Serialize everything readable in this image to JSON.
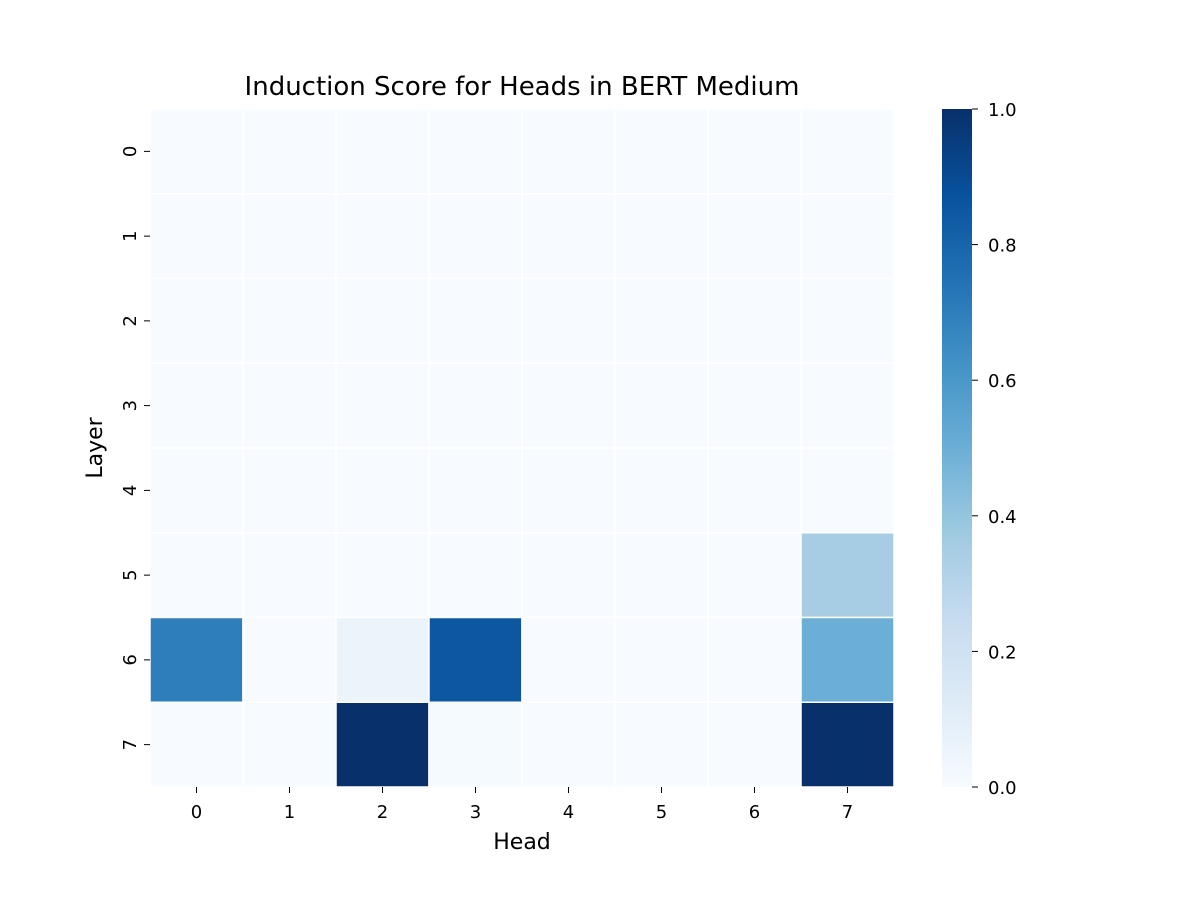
{
  "chart_data": {
    "type": "heatmap",
    "title": "Induction Score for Heads in BERT Medium",
    "xlabel": "Head",
    "ylabel": "Layer",
    "x_categories": [
      "0",
      "1",
      "2",
      "3",
      "4",
      "5",
      "6",
      "7"
    ],
    "y_categories": [
      "0",
      "1",
      "2",
      "3",
      "4",
      "5",
      "6",
      "7"
    ],
    "values": [
      [
        0.0,
        0.0,
        0.0,
        0.0,
        0.0,
        0.0,
        0.0,
        0.0
      ],
      [
        0.0,
        0.0,
        0.0,
        0.0,
        0.0,
        0.0,
        0.0,
        0.0
      ],
      [
        0.0,
        0.0,
        0.0,
        0.0,
        0.0,
        0.0,
        0.0,
        0.0
      ],
      [
        0.0,
        0.0,
        0.0,
        0.0,
        0.0,
        0.0,
        0.0,
        0.0
      ],
      [
        0.0,
        0.0,
        0.0,
        0.0,
        0.0,
        0.0,
        0.0,
        0.0
      ],
      [
        0.0,
        0.0,
        0.0,
        0.0,
        0.0,
        0.0,
        0.0,
        0.35
      ],
      [
        0.7,
        0.0,
        0.06,
        0.85,
        0.0,
        0.0,
        0.0,
        0.5
      ],
      [
        0.0,
        0.0,
        1.0,
        0.01,
        0.0,
        0.0,
        0.0,
        1.0
      ]
    ],
    "colorbar": {
      "range": [
        0.0,
        1.0
      ],
      "ticks": [
        "0.0",
        "0.2",
        "0.4",
        "0.6",
        "0.8",
        "1.0"
      ],
      "colormap": "Blues"
    },
    "grid": false
  }
}
